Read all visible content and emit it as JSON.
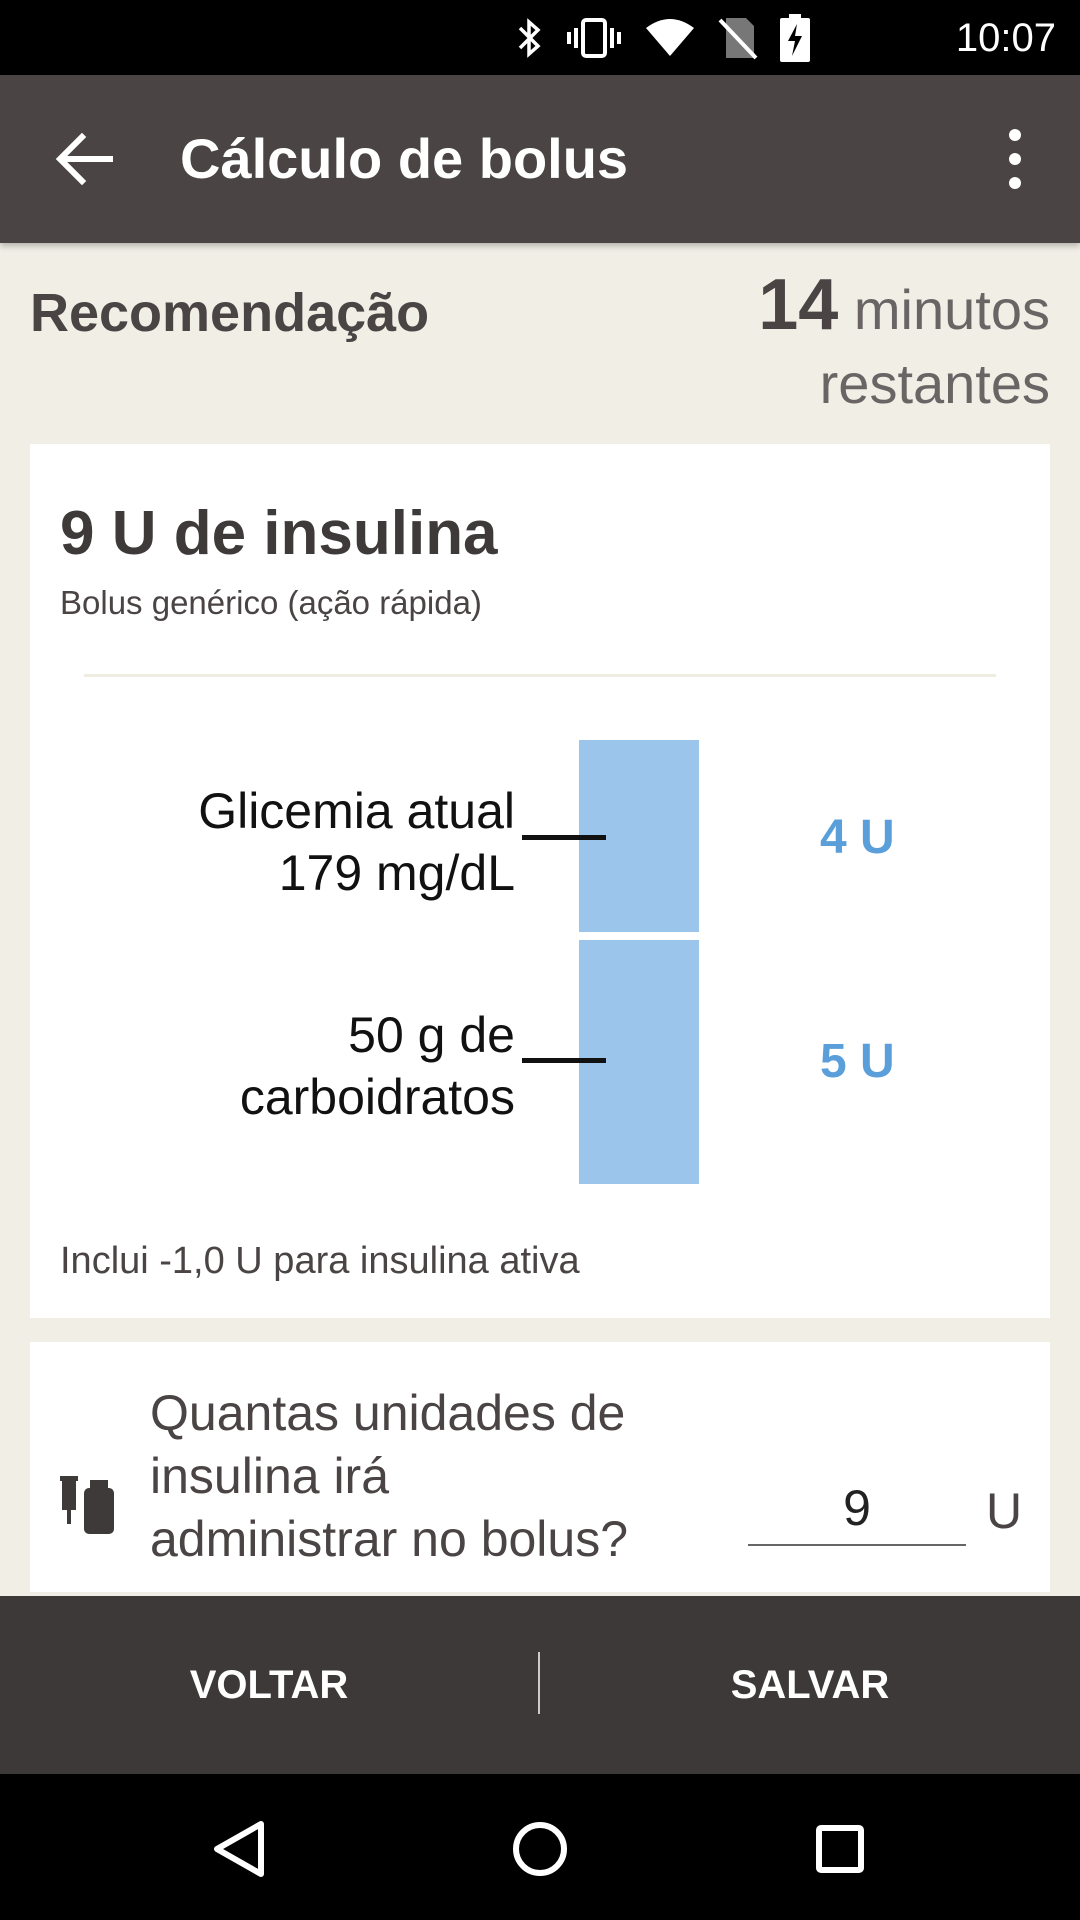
{
  "status_bar": {
    "time": "10:07"
  },
  "app_bar": {
    "title": "Cálculo de bolus"
  },
  "recommendation": {
    "heading": "Recomendação",
    "minutes": "14",
    "minutes_label": "minutos",
    "remaining_label": "restantes"
  },
  "result": {
    "dose": "9 U de insulina",
    "type": "Bolus genérico (ação rápida)",
    "glucose_label_1": "Glicemia atual",
    "glucose_label_2": "179 mg/dL",
    "glucose_units": "4 U",
    "carbs_label_1": "50 g de",
    "carbs_label_2": "carboidratos",
    "carbs_units": "5 U",
    "note": "Inclui -1,0 U para insulina ativa",
    "bar_color": "#9bc5ea",
    "value_color": "#5a9fda"
  },
  "input_card": {
    "question": "Quantas unidades de insulina irá administrar no bolus?",
    "value": "9",
    "unit": "U"
  },
  "actions": {
    "back_label": "VOLTAR",
    "save_label": "SALVAR"
  },
  "colors": {
    "app_bar": "#4a4444",
    "background": "#f1eee6",
    "bottom_bar": "#3d3939"
  }
}
